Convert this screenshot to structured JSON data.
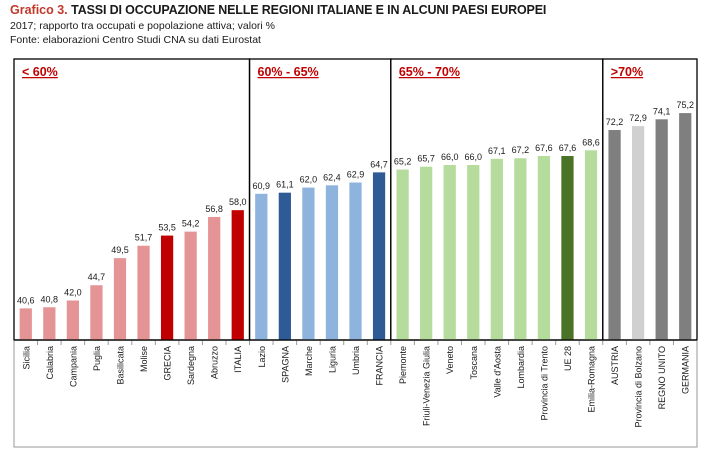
{
  "header": {
    "title_prefix": "Grafico 3.",
    "title_text": "TASSI DI OCCUPAZIONE NELLE REGIONI ITALIANE E IN ALCUNI PAESI EUROPEI",
    "subtitle": "2017; rapporto tra occupati e popolazione attiva; valori %",
    "source": "Fonte: elaborazioni Centro Studi CNA su dati Eurostat"
  },
  "chart_data": {
    "type": "bar",
    "ylim": [
      35,
      80
    ],
    "categories": [
      "Sicilia",
      "Calabria",
      "Campania",
      "Puglia",
      "Basilicata",
      "Molise",
      "GRECIA",
      "Sardegna",
      "Abruzzo",
      "ITALIA",
      "Lazio",
      "SPAGNA",
      "Marche",
      "Liguria",
      "Umbria",
      "FRANCIA",
      "Piemonte",
      "Friuli-Venezia Giulia",
      "Veneto",
      "Toscana",
      "Valle d'Aosta",
      "Lombardia",
      "Provincia di Trento",
      "UE 28",
      "Emilia-Romagna",
      "AUSTRIA",
      "Provincia di Bolzano",
      "REGNO UNITO",
      "GERMANIA"
    ],
    "values": [
      40.6,
      40.8,
      42.0,
      44.7,
      49.5,
      51.7,
      53.5,
      54.2,
      56.8,
      58.0,
      60.9,
      61.1,
      62.0,
      62.4,
      62.9,
      64.7,
      65.2,
      65.7,
      66.0,
      66.0,
      67.1,
      67.2,
      67.6,
      67.6,
      68.6,
      72.2,
      72.9,
      74.1,
      75.2
    ],
    "value_labels": [
      "40,6",
      "40,8",
      "42,0",
      "44,7",
      "49,5",
      "51,7",
      "53,5",
      "54,2",
      "56,8",
      "58,0",
      "60,9",
      "61,1",
      "62,0",
      "62,4",
      "62,9",
      "64,7",
      "65,2",
      "65,7",
      "66,0",
      "66,0",
      "67,1",
      "67,2",
      "67,6",
      "67,6",
      "68,6",
      "72,2",
      "72,9",
      "74,1",
      "75,2"
    ],
    "colors": [
      "#e59495",
      "#e59495",
      "#e59495",
      "#e59495",
      "#e59495",
      "#e59495",
      "#c00000",
      "#e59495",
      "#e59495",
      "#c00000",
      "#8eb3dc",
      "#2e5b95",
      "#8eb3dc",
      "#8eb3dc",
      "#8eb3dc",
      "#2e5b95",
      "#b5dc9c",
      "#b5dc9c",
      "#b5dc9c",
      "#b5dc9c",
      "#b5dc9c",
      "#b5dc9c",
      "#b5dc9c",
      "#4a7327",
      "#b5dc9c",
      "#7f7f7f",
      "#d0d0d0",
      "#7f7f7f",
      "#7f7f7f"
    ],
    "groups": [
      {
        "label": "< 60%",
        "count": 10
      },
      {
        "label": "60% - 65%",
        "count": 6
      },
      {
        "label": "65% - 70%",
        "count": 9
      },
      {
        "label": ">70%",
        "count": 4
      }
    ],
    "group_label_color": "#c00000",
    "grid": false,
    "legend": "none"
  }
}
